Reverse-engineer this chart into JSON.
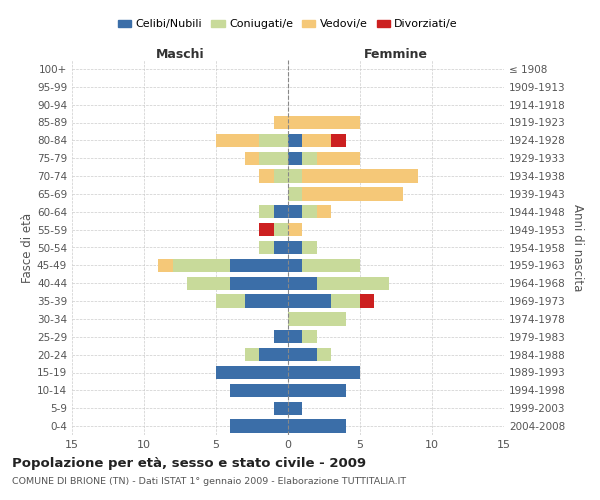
{
  "age_groups": [
    "0-4",
    "5-9",
    "10-14",
    "15-19",
    "20-24",
    "25-29",
    "30-34",
    "35-39",
    "40-44",
    "45-49",
    "50-54",
    "55-59",
    "60-64",
    "65-69",
    "70-74",
    "75-79",
    "80-84",
    "85-89",
    "90-94",
    "95-99",
    "100+"
  ],
  "birth_years": [
    "2004-2008",
    "1999-2003",
    "1994-1998",
    "1989-1993",
    "1984-1988",
    "1979-1983",
    "1974-1978",
    "1969-1973",
    "1964-1968",
    "1959-1963",
    "1954-1958",
    "1949-1953",
    "1944-1948",
    "1939-1943",
    "1934-1938",
    "1929-1933",
    "1924-1928",
    "1919-1923",
    "1914-1918",
    "1909-1913",
    "≤ 1908"
  ],
  "male": {
    "celibi": [
      4,
      1,
      4,
      5,
      2,
      1,
      0,
      3,
      4,
      4,
      1,
      0,
      1,
      0,
      0,
      0,
      0,
      0,
      0,
      0,
      0
    ],
    "coniugati": [
      0,
      0,
      0,
      0,
      1,
      0,
      0,
      2,
      3,
      4,
      1,
      1,
      1,
      0,
      1,
      2,
      2,
      0,
      0,
      0,
      0
    ],
    "vedovi": [
      0,
      0,
      0,
      0,
      0,
      0,
      0,
      0,
      0,
      1,
      0,
      0,
      0,
      0,
      1,
      1,
      3,
      1,
      0,
      0,
      0
    ],
    "divorziati": [
      0,
      0,
      0,
      0,
      0,
      0,
      0,
      0,
      0,
      0,
      0,
      1,
      0,
      0,
      0,
      0,
      0,
      0,
      0,
      0,
      0
    ]
  },
  "female": {
    "nubili": [
      4,
      1,
      4,
      5,
      2,
      1,
      0,
      3,
      2,
      1,
      1,
      0,
      1,
      0,
      0,
      1,
      1,
      0,
      0,
      0,
      0
    ],
    "coniugate": [
      0,
      0,
      0,
      0,
      1,
      1,
      4,
      2,
      5,
      4,
      1,
      0,
      1,
      1,
      1,
      1,
      0,
      0,
      0,
      0,
      0
    ],
    "vedove": [
      0,
      0,
      0,
      0,
      0,
      0,
      0,
      0,
      0,
      0,
      0,
      1,
      1,
      7,
      8,
      3,
      2,
      5,
      0,
      0,
      0
    ],
    "divorziate": [
      0,
      0,
      0,
      0,
      0,
      0,
      0,
      1,
      0,
      0,
      0,
      0,
      0,
      0,
      0,
      0,
      1,
      0,
      0,
      0,
      0
    ]
  },
  "colors": {
    "celibi_nubili": "#3b6ea8",
    "coniugati": "#c8da9a",
    "vedovi": "#f5c878",
    "divorziati": "#cc2020"
  },
  "xlim": 15,
  "title": "Popolazione per età, sesso e stato civile - 2009",
  "subtitle": "COMUNE DI BRIONE (TN) - Dati ISTAT 1° gennaio 2009 - Elaborazione TUTTITALIA.IT",
  "ylabel_left": "Fasce di età",
  "ylabel_right": "Anni di nascita",
  "xlabel_left": "Maschi",
  "xlabel_right": "Femmine"
}
